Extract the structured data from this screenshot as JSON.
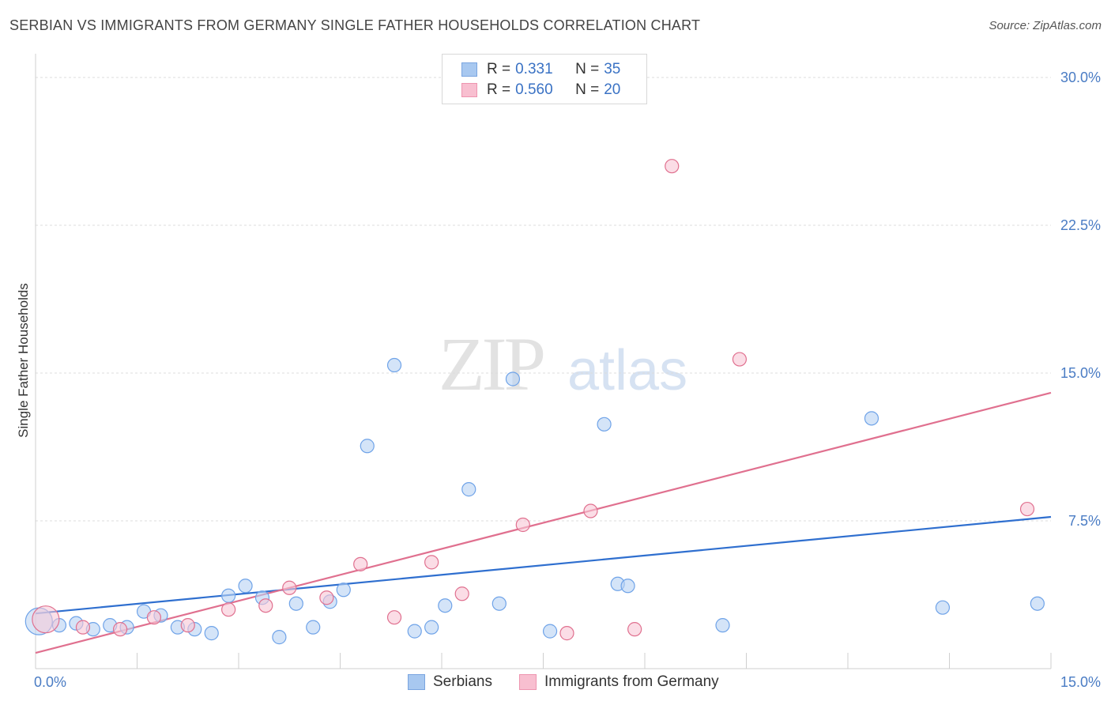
{
  "header": {
    "title": "SERBIAN VS IMMIGRANTS FROM GERMANY SINGLE FATHER HOUSEHOLDS CORRELATION CHART",
    "source": "Source: ZipAtlas.com"
  },
  "watermark": {
    "zip": "ZIP",
    "atlas": "atlas"
  },
  "legend": {
    "rows": [
      {
        "r_label": "R =",
        "r_value": "0.331",
        "n_label": "N =",
        "n_value": "35",
        "color": "#a8c8f0",
        "border": "#7aa5e0"
      },
      {
        "r_label": "R =",
        "r_value": "0.560",
        "n_label": "N =",
        "n_value": "20",
        "color": "#f8bfd0",
        "border": "#ee95b0"
      }
    ]
  },
  "bottom_legend": {
    "items": [
      {
        "label": "Serbians",
        "color": "#a8c8f0",
        "border": "#7aa5e0"
      },
      {
        "label": "Immigrants from Germany",
        "color": "#f8bfd0",
        "border": "#ee95b0"
      }
    ]
  },
  "chart_data": {
    "type": "scatter",
    "title": "SERBIAN VS IMMIGRANTS FROM GERMANY SINGLE FATHER HOUSEHOLDS CORRELATION CHART",
    "xlabel": "",
    "ylabel": "Single Father Households",
    "xlim": [
      0,
      15
    ],
    "ylim": [
      0,
      30
    ],
    "x_tick_labels": [
      {
        "value": 0,
        "label": "0.0%"
      },
      {
        "value": 15,
        "label": "15.0%"
      }
    ],
    "y_tick_labels": [
      {
        "value": 7.5,
        "label": "7.5%"
      },
      {
        "value": 15,
        "label": "15.0%"
      },
      {
        "value": 22.5,
        "label": "22.5%"
      },
      {
        "value": 30,
        "label": "30.0%"
      }
    ],
    "grid": true,
    "series": [
      {
        "name": "Serbians",
        "color": "#6fa3e8",
        "fill": "#b8d2f3",
        "trend": {
          "x": [
            0,
            15
          ],
          "y": [
            2.8,
            7.7
          ]
        },
        "points": [
          {
            "x": 0.05,
            "y": 2.4,
            "big": true
          },
          {
            "x": 0.35,
            "y": 2.2
          },
          {
            "x": 0.6,
            "y": 2.3
          },
          {
            "x": 0.85,
            "y": 2.0
          },
          {
            "x": 1.1,
            "y": 2.2
          },
          {
            "x": 1.35,
            "y": 2.1
          },
          {
            "x": 1.6,
            "y": 2.9
          },
          {
            "x": 1.85,
            "y": 2.7
          },
          {
            "x": 2.1,
            "y": 2.1
          },
          {
            "x": 2.35,
            "y": 2.0
          },
          {
            "x": 2.6,
            "y": 1.8
          },
          {
            "x": 2.85,
            "y": 3.7
          },
          {
            "x": 3.1,
            "y": 4.2
          },
          {
            "x": 3.35,
            "y": 3.6
          },
          {
            "x": 3.6,
            "y": 1.6
          },
          {
            "x": 3.85,
            "y": 3.3
          },
          {
            "x": 4.1,
            "y": 2.1
          },
          {
            "x": 4.35,
            "y": 3.4
          },
          {
            "x": 4.55,
            "y": 4.0
          },
          {
            "x": 4.9,
            "y": 11.3
          },
          {
            "x": 5.3,
            "y": 15.4
          },
          {
            "x": 5.6,
            "y": 1.9
          },
          {
            "x": 5.85,
            "y": 2.1
          },
          {
            "x": 6.05,
            "y": 3.2
          },
          {
            "x": 6.4,
            "y": 9.1
          },
          {
            "x": 6.85,
            "y": 3.3
          },
          {
            "x": 7.05,
            "y": 14.7
          },
          {
            "x": 7.6,
            "y": 1.9
          },
          {
            "x": 8.4,
            "y": 12.4
          },
          {
            "x": 8.6,
            "y": 4.3
          },
          {
            "x": 8.75,
            "y": 4.2
          },
          {
            "x": 10.15,
            "y": 2.2
          },
          {
            "x": 12.35,
            "y": 12.7
          },
          {
            "x": 13.4,
            "y": 3.1
          },
          {
            "x": 14.8,
            "y": 3.3
          }
        ]
      },
      {
        "name": "Immigrants from Germany",
        "color": "#e0708f",
        "fill": "#f8c6d6",
        "trend": {
          "x": [
            0,
            15
          ],
          "y": [
            0.8,
            14.0
          ]
        },
        "points": [
          {
            "x": 0.15,
            "y": 2.5,
            "big": true
          },
          {
            "x": 0.7,
            "y": 2.1
          },
          {
            "x": 1.25,
            "y": 2.0
          },
          {
            "x": 1.75,
            "y": 2.6
          },
          {
            "x": 2.25,
            "y": 2.2
          },
          {
            "x": 2.85,
            "y": 3.0
          },
          {
            "x": 3.4,
            "y": 3.2
          },
          {
            "x": 3.75,
            "y": 4.1
          },
          {
            "x": 4.3,
            "y": 3.6
          },
          {
            "x": 4.8,
            "y": 5.3
          },
          {
            "x": 5.3,
            "y": 2.6
          },
          {
            "x": 5.85,
            "y": 5.4
          },
          {
            "x": 6.3,
            "y": 3.8
          },
          {
            "x": 7.2,
            "y": 7.3
          },
          {
            "x": 7.85,
            "y": 1.8
          },
          {
            "x": 8.2,
            "y": 8.0
          },
          {
            "x": 8.85,
            "y": 2.0
          },
          {
            "x": 9.4,
            "y": 25.5
          },
          {
            "x": 10.4,
            "y": 15.7
          },
          {
            "x": 14.65,
            "y": 8.1
          }
        ]
      }
    ]
  }
}
